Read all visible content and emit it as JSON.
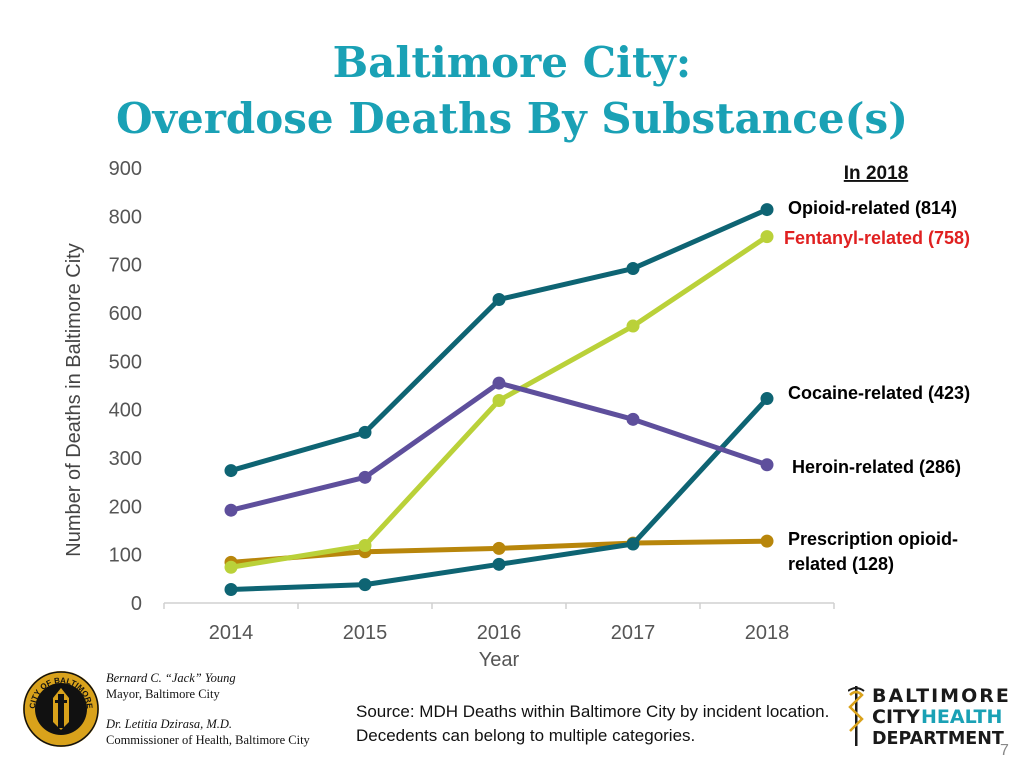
{
  "header": {
    "title_line1": "Baltimore City:",
    "title_line2": "Overdose Deaths By Substance(s)"
  },
  "chart_data": {
    "type": "line",
    "title": "Baltimore City: Overdose Deaths By Substance(s)",
    "xlabel": "Year",
    "ylabel": "Number of Deaths in Baltimore City",
    "categories": [
      "2014",
      "2015",
      "2016",
      "2017",
      "2018"
    ],
    "ylim": [
      0,
      900
    ],
    "yticks": [
      0,
      100,
      200,
      300,
      400,
      500,
      600,
      700,
      800,
      900
    ],
    "grid": false,
    "legend_heading": "In 2018",
    "series": [
      {
        "name": "Opioid-related",
        "label": "Opioid-related (814)",
        "color": "#0e6473",
        "label_color": "#000000",
        "values": [
          274,
          353,
          628,
          692,
          814
        ]
      },
      {
        "name": "Fentanyl-related",
        "label": "Fentanyl-related (758)",
        "color": "#bad139",
        "label_color": "#e02020",
        "values": [
          74,
          119,
          419,
          573,
          758
        ]
      },
      {
        "name": "Cocaine-related",
        "label": "Cocaine-related (423)",
        "color": "#0e6473",
        "label_color": "#000000",
        "values": [
          28,
          38,
          80,
          122,
          423
        ]
      },
      {
        "name": "Heroin-related",
        "label": "Heroin-related (286)",
        "color": "#5e4f9c",
        "label_color": "#000000",
        "values": [
          192,
          260,
          455,
          380,
          286
        ]
      },
      {
        "name": "Prescription opioid-related",
        "label_lines": [
          "Prescription opioid-",
          "related (128)"
        ],
        "color": "#b8860b",
        "label_color": "#000000",
        "values": [
          84,
          106,
          113,
          124,
          128
        ]
      }
    ]
  },
  "footer": {
    "mayor_name": "Bernard C. “Jack” Young",
    "mayor_title": "Mayor, Baltimore City",
    "commissioner_name": "Dr. Letitia Dzirasa, M.D.",
    "commissioner_title": "Commissioner of Health, Baltimore City",
    "source_note": "Source: MDH Deaths within Baltimore City by incident location. Decedents can belong to multiple categories.",
    "seal_text": "CITY OF BALTIMORE",
    "logo_line1": "BALTIMORE",
    "logo_line2a": "CITY",
    "logo_line2b": "HEALTH",
    "logo_line3": "DEPARTMENT",
    "logo_color_dark": "#1a1a1a",
    "logo_color_accent": "#1aa1b5",
    "page_number": "7"
  }
}
